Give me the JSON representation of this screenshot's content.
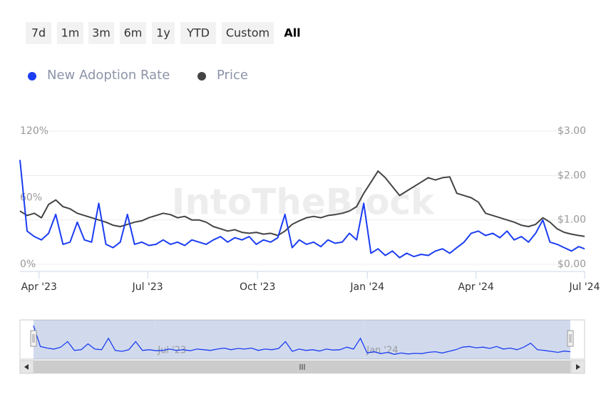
{
  "chart_data": {
    "type": "line",
    "watermark": "IntoTheBlock",
    "range_selector": {
      "buttons": [
        "7d",
        "1m",
        "3m",
        "6m",
        "1y",
        "YTD",
        "Custom",
        "All"
      ],
      "selected": 7
    },
    "x": [
      0,
      6,
      12,
      18,
      24,
      30,
      36,
      42,
      48,
      54,
      60,
      66,
      72,
      78,
      84,
      90,
      96,
      102,
      108,
      114,
      120,
      126,
      132,
      138,
      144,
      150,
      156,
      162,
      168,
      174,
      180,
      186,
      192,
      198,
      204,
      210,
      216,
      222,
      228,
      234,
      240,
      246,
      252,
      258,
      264,
      270,
      276,
      282,
      288,
      294,
      300,
      306,
      312,
      318,
      324,
      330,
      336,
      342,
      348,
      354,
      360,
      366,
      372,
      378,
      384,
      390,
      396,
      402,
      408,
      414,
      420,
      426,
      432,
      438,
      444,
      450,
      456,
      462,
      468,
      473
    ],
    "xlim": [
      0,
      473
    ],
    "xticks": [
      {
        "value": 16,
        "label": "Apr '23"
      },
      {
        "value": 107,
        "label": "Jul '23"
      },
      {
        "value": 199,
        "label": "Oct '23"
      },
      {
        "value": 291,
        "label": "Jan '24"
      },
      {
        "value": 382,
        "label": "Apr '24"
      },
      {
        "value": 473,
        "label": "Jul '24"
      }
    ],
    "ylim": [
      0,
      120
    ],
    "yticks": [
      {
        "value": 0,
        "label": "0%"
      },
      {
        "value": 60,
        "label": "60%"
      },
      {
        "value": 120,
        "label": "120%"
      }
    ],
    "y2lim": [
      0,
      3
    ],
    "y2ticks": [
      {
        "value": 0,
        "label": "$0.00"
      },
      {
        "value": 1,
        "label": "$1.00"
      },
      {
        "value": 2,
        "label": "$2.00"
      },
      {
        "value": 3,
        "label": "$3.00"
      }
    ],
    "grid": true,
    "legend": "top-left",
    "series": [
      {
        "name": "New Adoption Rate",
        "color": "#1b3df2",
        "values": [
          94,
          30,
          25,
          22,
          28,
          45,
          18,
          20,
          38,
          22,
          20,
          55,
          18,
          15,
          20,
          45,
          18,
          20,
          17,
          18,
          22,
          18,
          20,
          17,
          22,
          20,
          18,
          22,
          25,
          20,
          24,
          22,
          25,
          18,
          22,
          20,
          24,
          45,
          15,
          22,
          18,
          20,
          16,
          22,
          19,
          20,
          28,
          22,
          55,
          10,
          14,
          8,
          12,
          6,
          10,
          7,
          9,
          8,
          12,
          14,
          10,
          15,
          20,
          28,
          30,
          26,
          28,
          24,
          30,
          22,
          25,
          20,
          28,
          40,
          20,
          18,
          15,
          12,
          16,
          14
        ]
      },
      {
        "name": "Price",
        "color": "#444444",
        "axis": "y2",
        "values": [
          1.2,
          1.1,
          1.15,
          1.05,
          1.35,
          1.45,
          1.3,
          1.25,
          1.15,
          1.1,
          1.05,
          1.0,
          0.95,
          0.88,
          0.85,
          0.9,
          0.95,
          0.98,
          1.05,
          1.1,
          1.15,
          1.12,
          1.05,
          1.08,
          1.0,
          1.0,
          0.95,
          0.85,
          0.8,
          0.75,
          0.78,
          0.72,
          0.7,
          0.72,
          0.68,
          0.7,
          0.65,
          0.75,
          0.9,
          0.98,
          1.05,
          1.08,
          1.05,
          1.1,
          1.12,
          1.15,
          1.2,
          1.3,
          1.6,
          1.85,
          2.1,
          1.95,
          1.75,
          1.55,
          1.65,
          1.75,
          1.85,
          1.95,
          1.9,
          1.95,
          1.97,
          1.6,
          1.55,
          1.5,
          1.4,
          1.15,
          1.1,
          1.05,
          1.0,
          0.95,
          0.88,
          0.85,
          0.9,
          1.05,
          0.95,
          0.8,
          0.72,
          0.68,
          0.65,
          0.63
        ]
      }
    ],
    "navigator": {
      "xticks": [
        {
          "value": 107,
          "label": "Jul '23"
        },
        {
          "value": 291,
          "label": "Jan '24"
        }
      ]
    }
  }
}
